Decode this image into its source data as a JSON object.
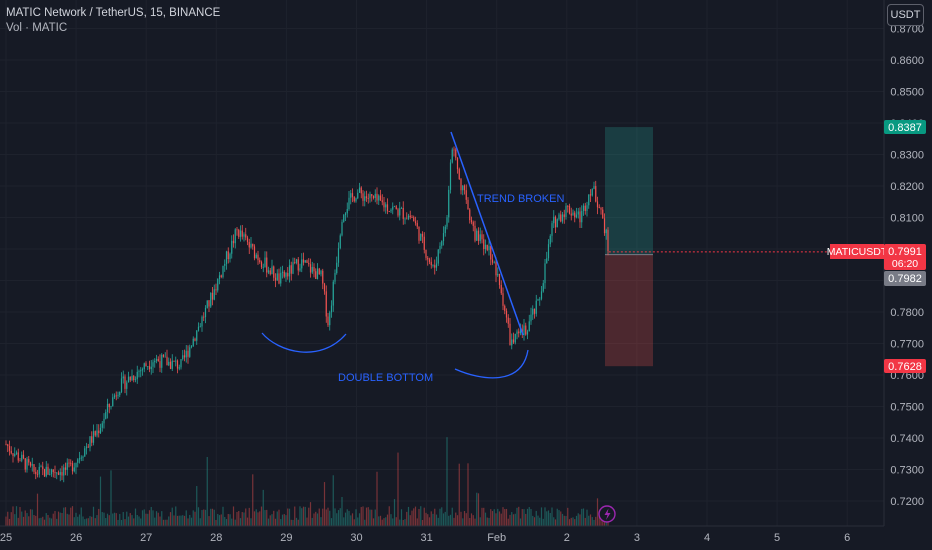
{
  "header": {
    "title": "MATIC Network / TetherUS, 15, BINANCE",
    "subtitle": "Vol · MATIC"
  },
  "currency_button": "USDT",
  "annotations": {
    "double_bottom": "DOUBLE BOTTOM",
    "trend_broken": "TREND BROKEN"
  },
  "price_axis": {
    "ticks": [
      "0.8700",
      "0.8600",
      "0.8500",
      "0.8400",
      "0.8300",
      "0.8200",
      "0.8100",
      "0.8000",
      "0.7900",
      "0.7800",
      "0.7700",
      "0.7600",
      "0.7500",
      "0.7400",
      "0.7300",
      "0.7200"
    ]
  },
  "time_axis": {
    "ticks": [
      "25",
      "26",
      "27",
      "28",
      "29",
      "30",
      "31",
      "Feb",
      "2",
      "3",
      "4",
      "5",
      "6"
    ]
  },
  "price_labels": {
    "take_profit": "0.8387",
    "symbol": "MATICUSDT",
    "last_price": "0.7991",
    "countdown": "06:20",
    "entry": "0.7982",
    "stop_loss": "0.7628"
  },
  "colors": {
    "background": "#161a25",
    "up_candle": "#26a69a",
    "down_candle": "#ef5350",
    "annotation_blue": "#2962ff",
    "profit_zone": "#26a69a",
    "loss_zone": "#ef5350"
  },
  "icons": {
    "lightning": "lightning-icon"
  },
  "chart_data": {
    "type": "candlestick",
    "symbol": "MATICUSDT",
    "interval": "15",
    "ylim": [
      0.715,
      0.878
    ],
    "x_day_ticks": [
      "25",
      "26",
      "27",
      "28",
      "29",
      "30",
      "31",
      "Feb",
      "2",
      "3",
      "4",
      "5",
      "6"
    ],
    "price_path_keypoints": [
      {
        "day": 0.0,
        "price": 0.738
      },
      {
        "day": 0.4,
        "price": 0.729
      },
      {
        "day": 0.9,
        "price": 0.73
      },
      {
        "day": 1.3,
        "price": 0.742
      },
      {
        "day": 1.6,
        "price": 0.756
      },
      {
        "day": 2.1,
        "price": 0.765
      },
      {
        "day": 2.5,
        "price": 0.763
      },
      {
        "day": 2.9,
        "price": 0.783
      },
      {
        "day": 3.3,
        "price": 0.806
      },
      {
        "day": 3.5,
        "price": 0.8
      },
      {
        "day": 3.9,
        "price": 0.79
      },
      {
        "day": 4.2,
        "price": 0.796
      },
      {
        "day": 4.5,
        "price": 0.791
      },
      {
        "day": 4.6,
        "price": 0.776
      },
      {
        "day": 4.8,
        "price": 0.812
      },
      {
        "day": 5.0,
        "price": 0.818
      },
      {
        "day": 5.4,
        "price": 0.814
      },
      {
        "day": 5.8,
        "price": 0.81
      },
      {
        "day": 6.1,
        "price": 0.793
      },
      {
        "day": 6.3,
        "price": 0.812
      },
      {
        "day": 6.35,
        "price": 0.833
      },
      {
        "day": 6.5,
        "price": 0.82
      },
      {
        "day": 6.7,
        "price": 0.804
      },
      {
        "day": 6.9,
        "price": 0.8
      },
      {
        "day": 7.1,
        "price": 0.783
      },
      {
        "day": 7.2,
        "price": 0.77
      },
      {
        "day": 7.4,
        "price": 0.774
      },
      {
        "day": 7.6,
        "price": 0.783
      },
      {
        "day": 7.8,
        "price": 0.808
      },
      {
        "day": 8.0,
        "price": 0.813
      },
      {
        "day": 8.2,
        "price": 0.81
      },
      {
        "day": 8.35,
        "price": 0.82
      },
      {
        "day": 8.5,
        "price": 0.812
      },
      {
        "day": 8.6,
        "price": 0.7991
      }
    ],
    "position": {
      "entry": 0.7982,
      "take_profit": 0.8387,
      "stop_loss": 0.7628,
      "last_price": 0.7991
    }
  }
}
